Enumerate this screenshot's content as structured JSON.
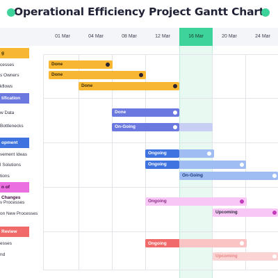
{
  "title": "Operational Efficiency Project Gantt Chart",
  "colors": {
    "accent": "#3ed39a",
    "orange": "#f7b733",
    "indigo": "#6b78e0",
    "blue": "#3f74e0",
    "pink": "#ec6fe2",
    "red": "#f06a6a"
  },
  "timeline": {
    "dates": [
      "01 Mar",
      "04 Mar",
      "08 Mar",
      "12 Mar",
      "16 Mar",
      "20 Mar",
      "24 Mar"
    ],
    "selected": "16 Mar"
  },
  "categories": [
    {
      "label": "g"
    },
    {
      "label": "tification"
    },
    {
      "label": "opment"
    },
    {
      "label": "n of Changes"
    },
    {
      "label": " Review"
    }
  ],
  "tasks": [
    {
      "label": "cesses"
    },
    {
      "label": "s Owners"
    },
    {
      "label": "kflows"
    },
    {
      "label": "w Data"
    },
    {
      "label": "Bottlenecks"
    },
    {
      "label": "vement Ideas"
    },
    {
      "label": "l Solutions"
    },
    {
      "label": "tions"
    },
    {
      "label": "v Processes"
    },
    {
      "label": "on New Processes"
    },
    {
      "label": "esses"
    },
    {
      "label": "nd"
    }
  ],
  "bars": [
    {
      "label": "Done",
      "status": "done",
      "color": "orange"
    },
    {
      "label": "Done",
      "status": "done",
      "color": "orange"
    },
    {
      "label": "Done",
      "status": "done",
      "color": "orange"
    },
    {
      "label": "Done",
      "status": "done",
      "color": "indigo"
    },
    {
      "label": "On-Going",
      "status": "ongoing",
      "color": "indigo"
    },
    {
      "label": "Ongoing",
      "status": "ongoing",
      "color": "blue"
    },
    {
      "label": "Ongoing",
      "status": "ongoing",
      "color": "blue"
    },
    {
      "label": "On-Going",
      "status": "ongoing",
      "color": "blue"
    },
    {
      "label": "Ongoing",
      "status": "ongoing",
      "color": "pink"
    },
    {
      "label": "Upcoming",
      "status": "upcoming",
      "color": "pink"
    },
    {
      "label": "Ongoing",
      "status": "ongoing",
      "color": "red"
    },
    {
      "label": "Upcoming",
      "status": "upcoming",
      "color": "red"
    }
  ]
}
